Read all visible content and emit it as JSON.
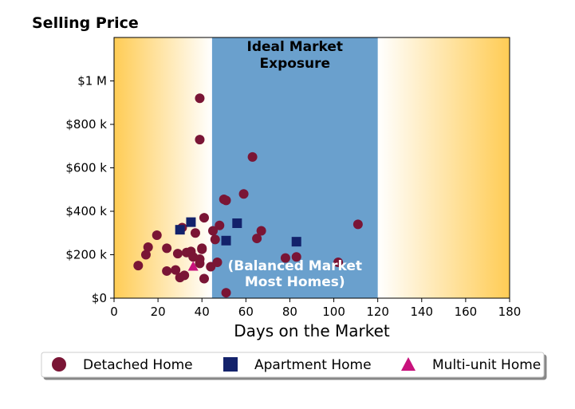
{
  "chart_data": {
    "type": "scatter",
    "ylabel": "Selling Price",
    "xlabel": "Days on the Market",
    "xlim": [
      0,
      180
    ],
    "ylim": [
      0,
      1200000
    ],
    "x_ticks": [
      0,
      20,
      40,
      60,
      80,
      100,
      120,
      140,
      160,
      180
    ],
    "x_tick_labels": [
      "0",
      "20",
      "40",
      "60",
      "80",
      "100",
      "120",
      "140",
      "160",
      "180"
    ],
    "y_ticks": [
      0,
      200000,
      400000,
      600000,
      800000,
      1000000
    ],
    "y_tick_labels": [
      "$0",
      "$200 k",
      "$400 k",
      "$600 k",
      "$800 k",
      "$1 M"
    ],
    "grid": false,
    "background": {
      "gradient_color": "#ffcc55",
      "ideal_band": [
        44.6,
        120
      ],
      "ideal_band_color": "#6aa0cd"
    },
    "annotations": [
      {
        "text_line1": "Ideal Market",
        "text_line2": "Exposure",
        "color": "#000000"
      },
      {
        "text_line1": "(Balanced Market",
        "text_line2": "Most Homes)",
        "color": "#ffffff"
      }
    ],
    "legend_position": "bottom",
    "series": [
      {
        "name": "Detached Home",
        "marker": "circle",
        "color": "#7a1535",
        "points": [
          [
            11,
            150000
          ],
          [
            14.5,
            200000
          ],
          [
            15.5,
            235000
          ],
          [
            19.5,
            290000
          ],
          [
            24,
            125000
          ],
          [
            24,
            230000
          ],
          [
            28,
            130000
          ],
          [
            29,
            205000
          ],
          [
            30,
            95000
          ],
          [
            31,
            325000
          ],
          [
            32,
            105000
          ],
          [
            33,
            210000
          ],
          [
            35,
            215000
          ],
          [
            36,
            190000
          ],
          [
            37,
            300000
          ],
          [
            39,
            180000
          ],
          [
            39,
            160000
          ],
          [
            40,
            230000
          ],
          [
            40,
            225000
          ],
          [
            41,
            370000
          ],
          [
            41,
            90000
          ],
          [
            44,
            145000
          ],
          [
            45,
            310000
          ],
          [
            46,
            270000
          ],
          [
            47,
            165000
          ],
          [
            48,
            335000
          ],
          [
            50,
            455000
          ],
          [
            51,
            450000
          ],
          [
            51,
            25000
          ],
          [
            59,
            480000
          ],
          [
            63,
            650000
          ],
          [
            65,
            275000
          ],
          [
            67,
            310000
          ],
          [
            78,
            185000
          ],
          [
            83,
            190000
          ],
          [
            102,
            165000
          ],
          [
            111,
            340000
          ],
          [
            39,
            920000
          ],
          [
            39,
            730000
          ]
        ]
      },
      {
        "name": "Apartment Home",
        "marker": "square",
        "color": "#13226b",
        "points": [
          [
            30,
            315000
          ],
          [
            35,
            350000
          ],
          [
            51,
            265000
          ],
          [
            56,
            345000
          ],
          [
            83,
            260000
          ]
        ]
      },
      {
        "name": "Multi-unit Home",
        "marker": "triangle",
        "color": "#c8127c",
        "points": [
          [
            36,
            145000
          ]
        ]
      }
    ]
  }
}
